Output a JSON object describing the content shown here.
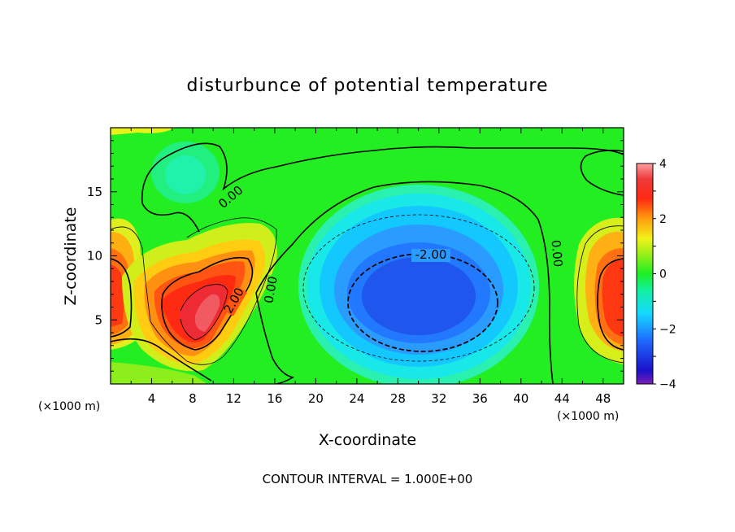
{
  "chart_data": {
    "type": "heatmap",
    "title": "disturbunce of potential temperature",
    "xlabel": "X-coordinate",
    "ylabel": "Z-coordinate",
    "x_unit_label": "(×1000 m)",
    "x_unit_label_right": "(×1000 m)",
    "footer": "CONTOUR INTERVAL = 1.000E+00",
    "xlim": [
      0,
      50
    ],
    "ylim": [
      0,
      20
    ],
    "x_ticks": [
      4,
      8,
      12,
      16,
      20,
      24,
      28,
      32,
      36,
      40,
      44,
      48
    ],
    "x_tick_labels": [
      "4",
      "8",
      "12",
      "16",
      "20",
      "24",
      "28",
      "32",
      "36",
      "40",
      "44",
      "48"
    ],
    "y_ticks": [
      5,
      10,
      15
    ],
    "y_tick_labels": [
      "5",
      "10",
      "15"
    ],
    "colorbar": {
      "range": [
        -4,
        4
      ],
      "ticks": [
        -4,
        -2,
        0,
        2,
        4
      ],
      "tick_labels": [
        "−4",
        "−2",
        "0",
        "2",
        "4"
      ],
      "colormap": "rainbow"
    },
    "contour_interval": 1.0,
    "contour_labels": [
      "0.00",
      "2.00",
      "0.00",
      "-2.00",
      "0.00"
    ],
    "features": [
      {
        "kind": "cold anomaly",
        "x": 30,
        "z": 6,
        "value": -3.0
      },
      {
        "kind": "warm anomaly",
        "x": 9,
        "z": 6,
        "value": 3.4
      },
      {
        "kind": "warm anomaly",
        "x": 1,
        "z": 6,
        "value": 2.3
      },
      {
        "kind": "warm anomaly",
        "x": 49,
        "z": 6,
        "value": 2.6
      }
    ]
  }
}
